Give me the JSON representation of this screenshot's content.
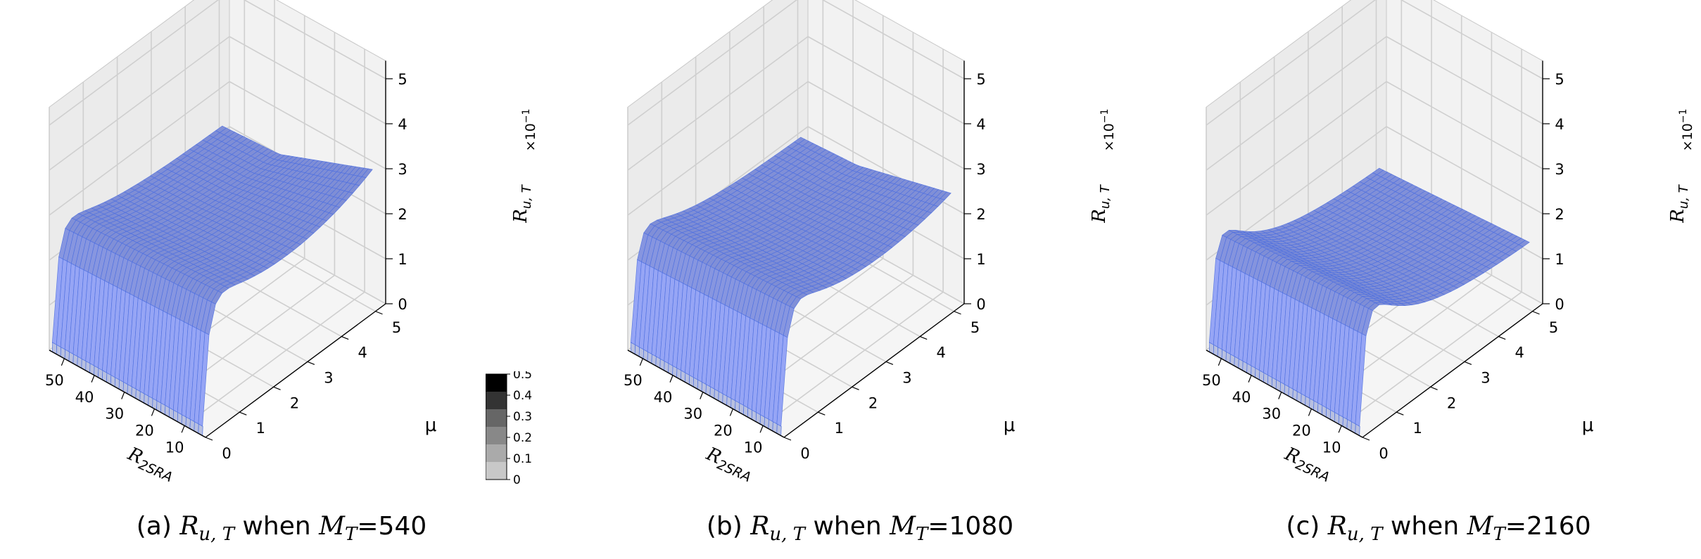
{
  "figure": {
    "colors": {
      "surface": "#4a6fe3",
      "pane": "#f2f2f2",
      "grid": "#cfcfcf",
      "edge": "#4c6fe0"
    }
  },
  "colorbar": {
    "ticks": [
      "0.5",
      "0.4",
      "0.3",
      "0.2",
      "0.1",
      "0"
    ],
    "shades": [
      "#000000",
      "#333333",
      "#666666",
      "#888888",
      "#aaaaaa",
      "#c8c8c8"
    ]
  },
  "chart_data": [
    {
      "type": "surface3d",
      "panel": "(a)",
      "caption": {
        "prefix": "(a)",
        "quantity": "R",
        "quantity_sub": "u, T",
        "mid": "when",
        "param": "M",
        "param_sub": "T",
        "param_value": "=540"
      },
      "xlabel": "R",
      "xlabel_sub": "2SRA",
      "ylabel": "μ",
      "zlabel": "R",
      "zlabel_sub": "u, T",
      "zscale_label": "×10",
      "zscale_exp": "−1",
      "xticks": [
        "50",
        "40",
        "30",
        "20",
        "10"
      ],
      "yticks": [
        "0",
        "1",
        "2",
        "3",
        "4",
        "5"
      ],
      "zticks": [
        "0",
        "1",
        "2",
        "3",
        "4",
        "5"
      ],
      "xlim": [
        3,
        55
      ],
      "ylim": [
        0,
        5.3
      ],
      "zlim": [
        0,
        5
      ],
      "surface_params": {
        "base": 3.5,
        "dip": 0.9,
        "rise": 1.0,
        "cliff": 0.85
      }
    },
    {
      "type": "surface3d",
      "panel": "(b)",
      "caption": {
        "prefix": "(b)",
        "quantity": "R",
        "quantity_sub": "u, T",
        "mid": "when",
        "param": "M",
        "param_sub": "T",
        "param_value": "=1080"
      },
      "xlabel": "R",
      "xlabel_sub": "2SRA",
      "ylabel": "μ",
      "zlabel": "R",
      "zlabel_sub": "u, T",
      "zscale_label": "×10",
      "zscale_exp": "−1",
      "xticks": [
        "50",
        "40",
        "30",
        "20",
        "10"
      ],
      "yticks": [
        "0",
        "1",
        "2",
        "3",
        "4",
        "5"
      ],
      "zticks": [
        "0",
        "1",
        "2",
        "3",
        "4",
        "5"
      ],
      "xlim": [
        3,
        55
      ],
      "ylim": [
        0,
        5.3
      ],
      "zlim": [
        0,
        5
      ],
      "surface_params": {
        "base": 3.4,
        "dip": 1.1,
        "rise": 0.6,
        "cliff": 0.85
      }
    },
    {
      "type": "surface3d",
      "panel": "(c)",
      "caption": {
        "prefix": "(c)",
        "quantity": "R",
        "quantity_sub": "u, T",
        "mid": "when",
        "param": "M",
        "param_sub": "T",
        "param_value": "=2160"
      },
      "xlabel": "R",
      "xlabel_sub": "2SRA",
      "ylabel": "μ",
      "zlabel": "R",
      "zlabel_sub": "u, T",
      "zscale_label": "×10",
      "zscale_exp": "−1",
      "xticks": [
        "50",
        "40",
        "30",
        "20",
        "10"
      ],
      "yticks": [
        "0",
        "1",
        "2",
        "3",
        "4",
        "5"
      ],
      "zticks": [
        "0",
        "1",
        "2",
        "3",
        "4",
        "5"
      ],
      "xlim": [
        3,
        55
      ],
      "ylim": [
        0,
        5.3
      ],
      "zlim": [
        0,
        5
      ],
      "surface_params": {
        "base": 3.3,
        "dip": 1.9,
        "rise": 0.0,
        "cliff": 0.9
      }
    }
  ]
}
